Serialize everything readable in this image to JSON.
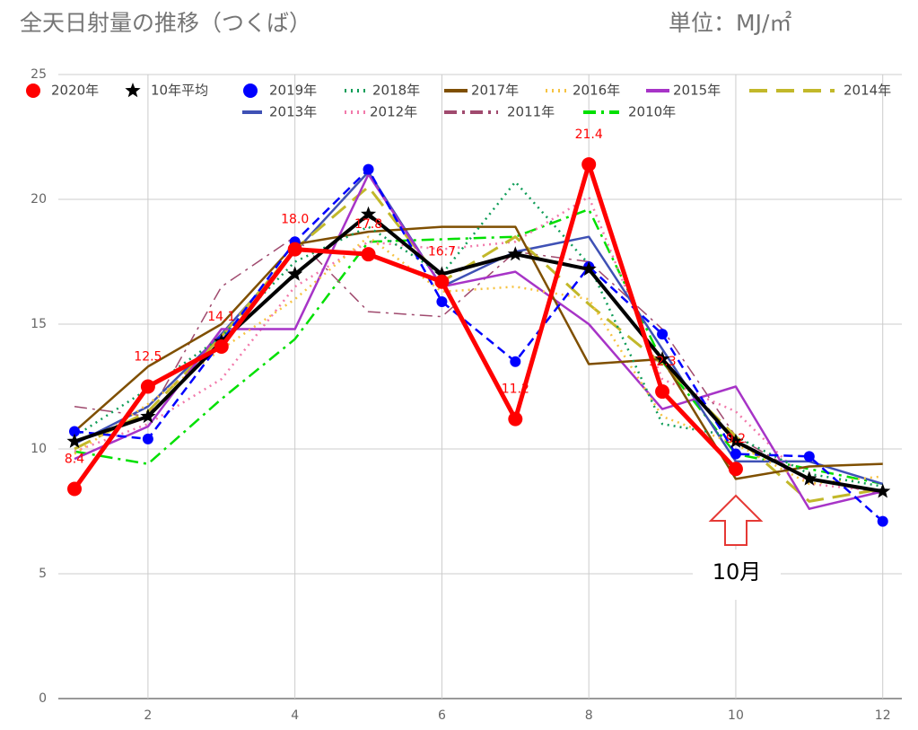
{
  "chart_data": {
    "type": "line",
    "title": "全天日射量の推移（つくば）",
    "subtitle": "単位：MJ/㎡",
    "annotation": "10月",
    "x": [
      1,
      2,
      3,
      4,
      5,
      6,
      7,
      8,
      9,
      10,
      11,
      12
    ],
    "xlim": [
      0.78,
      12.26
    ],
    "xticks": [
      2,
      4,
      6,
      8,
      10,
      12
    ],
    "ylim": [
      0,
      25
    ],
    "yticks": [
      0,
      5,
      10,
      15,
      20,
      25
    ],
    "grid": true,
    "series": [
      {
        "name": "2020年",
        "color": "#ff0000",
        "width": 5,
        "dash": "solid",
        "marker": "circle",
        "values": [
          8.4,
          12.5,
          14.1,
          18.0,
          17.8,
          16.7,
          11.2,
          21.4,
          12.3,
          9.2,
          null,
          null
        ],
        "value_labels": [
          "8.4",
          "12.5",
          "14.1",
          "18.0",
          "17.8",
          "16.7",
          "11.2",
          "21.4",
          "12.3",
          "9.2",
          null,
          null
        ]
      },
      {
        "name": "10年平均",
        "color": "#000000",
        "width": 4,
        "dash": "solid",
        "marker": "star",
        "values": [
          10.3,
          11.3,
          14.3,
          17.0,
          19.4,
          17.0,
          17.8,
          17.2,
          13.6,
          10.3,
          8.8,
          8.3
        ]
      },
      {
        "name": "2019年",
        "color": "#0000ff",
        "width": 2.5,
        "dash": "dashed",
        "marker": "circle",
        "values": [
          10.7,
          10.4,
          14.3,
          18.3,
          21.2,
          15.9,
          13.5,
          17.3,
          14.6,
          9.8,
          9.7,
          7.1
        ]
      },
      {
        "name": "2018年",
        "color": "#0f9d58",
        "width": 2.5,
        "dash": "dotted",
        "marker": "none",
        "values": [
          10.5,
          12.4,
          14.5,
          17.5,
          18.9,
          17.0,
          20.7,
          17.4,
          11.0,
          10.5,
          9.0,
          8.5
        ]
      },
      {
        "name": "2017年",
        "color": "#7f4f00",
        "width": 2.5,
        "dash": "solid",
        "marker": "none",
        "values": [
          10.7,
          13.3,
          15.0,
          18.2,
          18.7,
          18.9,
          18.9,
          13.4,
          13.6,
          8.8,
          9.3,
          9.4
        ]
      },
      {
        "name": "2016年",
        "color": "#f6c342",
        "width": 2.5,
        "dash": "dotted",
        "marker": "none",
        "values": [
          9.8,
          11.8,
          14.0,
          16.0,
          18.5,
          16.3,
          16.5,
          16.0,
          11.3,
          10.2,
          8.6,
          8.9
        ]
      },
      {
        "name": "2015年",
        "color": "#a734c7",
        "width": 2.5,
        "dash": "solid",
        "marker": "none",
        "values": [
          9.6,
          10.9,
          14.8,
          14.8,
          21.0,
          16.5,
          17.1,
          15.0,
          11.6,
          12.5,
          7.6,
          8.3
        ]
      },
      {
        "name": "2014年",
        "color": "#c2b82a",
        "width": 3,
        "dash": "longdash",
        "marker": "none",
        "values": [
          10.0,
          11.5,
          14.5,
          18.0,
          20.5,
          16.7,
          18.5,
          15.8,
          13.4,
          10.5,
          7.9,
          8.4
        ]
      },
      {
        "name": "2013年",
        "color": "#3f51b5",
        "width": 2.5,
        "dash": "solid",
        "marker": "none",
        "values": [
          10.2,
          11.7,
          14.6,
          17.9,
          21.1,
          16.5,
          17.9,
          18.5,
          14.0,
          9.5,
          9.5,
          8.6
        ]
      },
      {
        "name": "2012年",
        "color": "#f27aab",
        "width": 2.5,
        "dash": "dotted",
        "marker": "none",
        "values": [
          9.9,
          11.0,
          12.8,
          16.5,
          18.3,
          18.0,
          18.3,
          20.1,
          12.8,
          11.5,
          8.6,
          8.3
        ]
      },
      {
        "name": "2011年",
        "color": "#a04a6e",
        "width": 1.5,
        "dash": "dashdot",
        "marker": "none",
        "values": [
          11.7,
          11.3,
          16.5,
          18.5,
          15.5,
          15.3,
          17.9,
          17.5,
          14.8,
          10.5,
          8.8,
          8.2
        ]
      },
      {
        "name": "2010年",
        "color": "#00e000",
        "width": 2.5,
        "dash": "dashdot",
        "marker": "none",
        "values": [
          9.9,
          9.4,
          12.0,
          14.4,
          18.3,
          18.4,
          18.5,
          19.6,
          13.5,
          9.8,
          9.2,
          8.6
        ]
      }
    ]
  }
}
